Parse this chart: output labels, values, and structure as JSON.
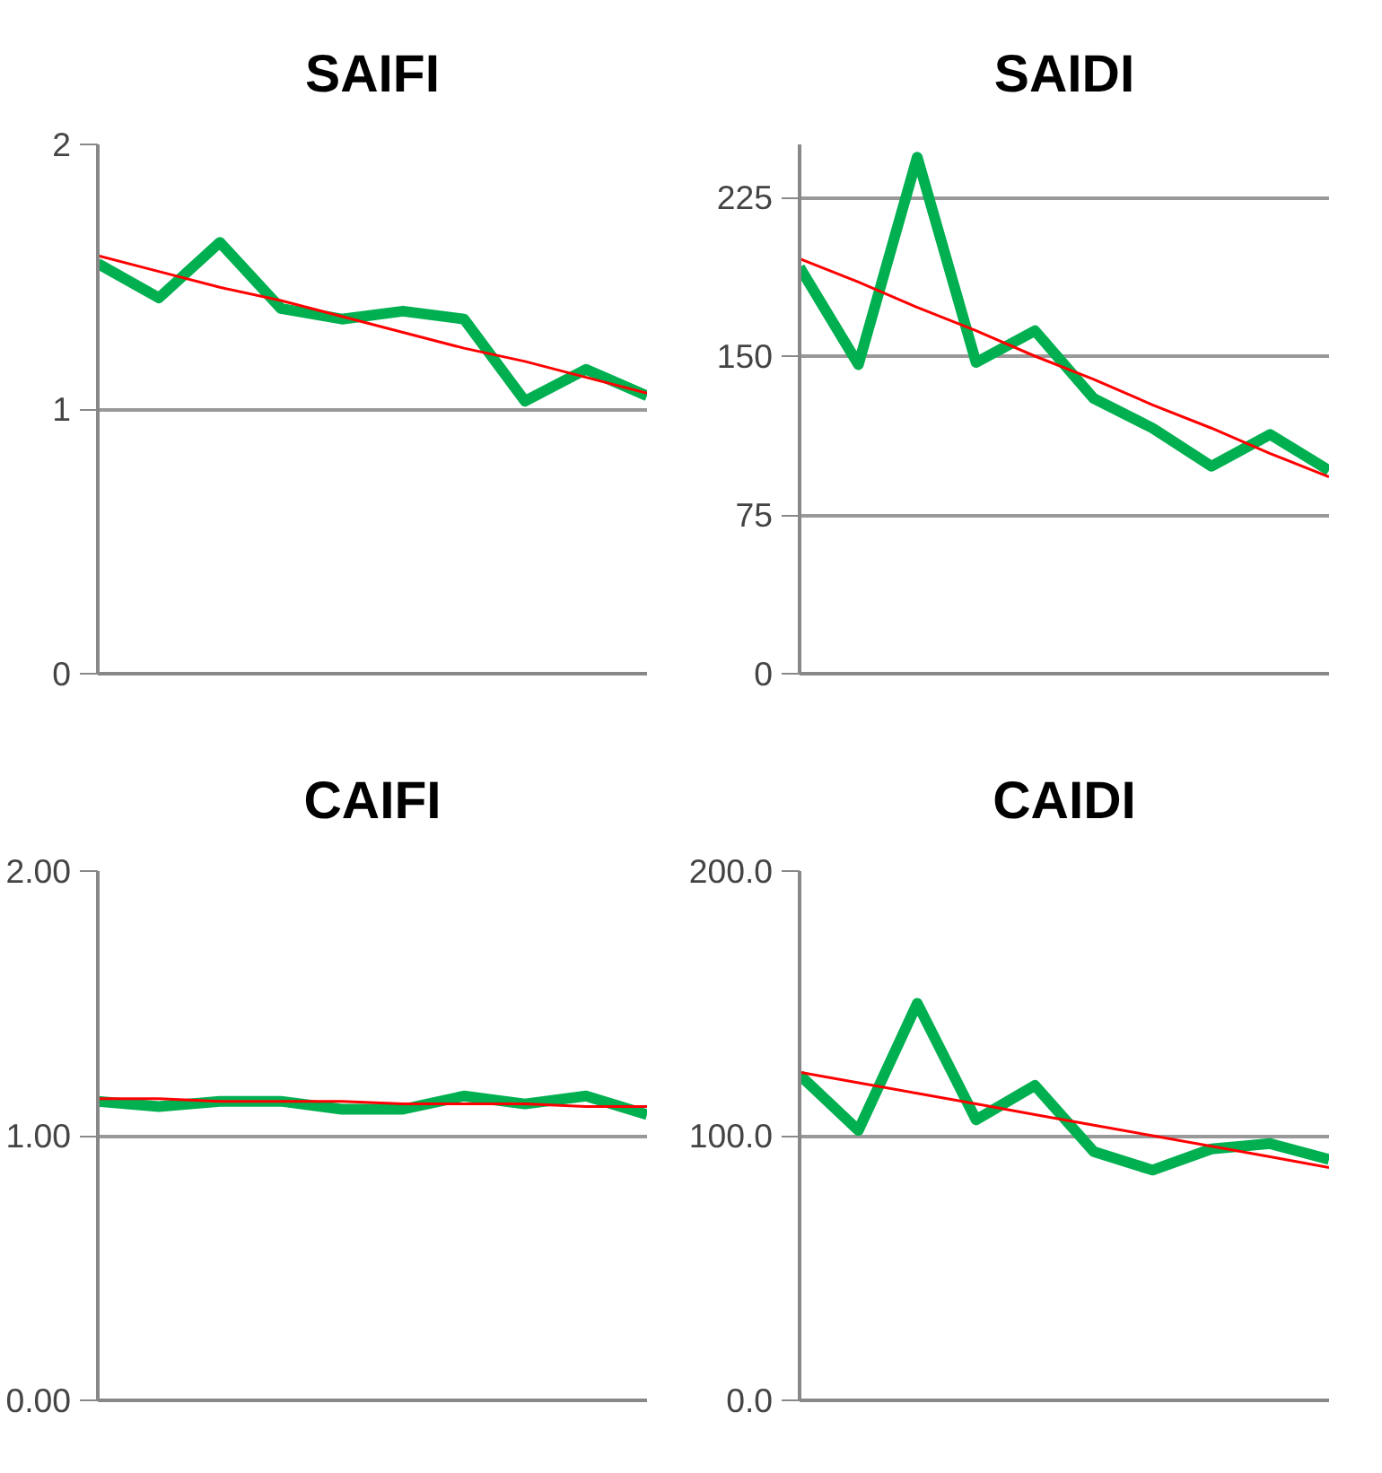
{
  "chart_data": [
    {
      "type": "line",
      "title": "SAIFI",
      "categories": [
        null,
        null,
        null,
        null,
        null,
        null,
        null,
        null,
        null,
        null
      ],
      "ylim": [
        0,
        2
      ],
      "yticks": [
        0,
        1,
        2
      ],
      "grid": "y",
      "tick_labels": "y",
      "series": [
        {
          "color": "#00b050",
          "values": [
            1.55,
            1.42,
            1.63,
            1.38,
            1.34,
            1.37,
            1.34,
            1.03,
            1.15,
            1.05
          ]
        },
        {
          "color": "#ff0000",
          "values": [
            1.58,
            1.52,
            1.46,
            1.41,
            1.35,
            1.29,
            1.23,
            1.18,
            1.12,
            1.06
          ]
        }
      ]
    },
    {
      "type": "line",
      "title": "SAIDI",
      "categories": [
        null,
        null,
        null,
        null,
        null,
        null,
        null,
        null,
        null,
        null
      ],
      "ylim": [
        0,
        250
      ],
      "yticks": [
        0,
        75,
        150,
        225
      ],
      "grid": "y",
      "tick_labels": "y",
      "series": [
        {
          "color": "#00b050",
          "values": [
            192,
            146,
            244,
            147,
            162,
            130,
            116,
            98,
            113,
            96
          ]
        },
        {
          "color": "#ff0000",
          "values": [
            196,
            185,
            173,
            162,
            150,
            139,
            127,
            116,
            104,
            93
          ]
        }
      ]
    },
    {
      "type": "line",
      "title": "CAIFI",
      "categories": [
        null,
        null,
        null,
        null,
        null,
        null,
        null,
        null,
        null,
        null
      ],
      "ylim": [
        0,
        2
      ],
      "yticks": [
        {
          "value": 0,
          "label": "0.00"
        },
        {
          "value": 1,
          "label": "1.00"
        },
        {
          "value": 2,
          "label": "2.00"
        }
      ],
      "grid": "y",
      "tick_labels": "y",
      "series": [
        {
          "color": "#00b050",
          "values": [
            1.13,
            1.11,
            1.13,
            1.13,
            1.1,
            1.1,
            1.15,
            1.12,
            1.15,
            1.08
          ]
        },
        {
          "color": "#ff0000",
          "values": [
            1.14,
            1.14,
            1.13,
            1.13,
            1.13,
            1.12,
            1.12,
            1.12,
            1.11,
            1.11
          ]
        }
      ]
    },
    {
      "type": "line",
      "title": "CAIDI",
      "categories": [
        null,
        null,
        null,
        null,
        null,
        null,
        null,
        null,
        null,
        null
      ],
      "ylim": [
        0,
        200
      ],
      "yticks": [
        {
          "value": 0,
          "label": "0.0"
        },
        {
          "value": 100,
          "label": "100.0"
        },
        {
          "value": 200,
          "label": "200.0"
        }
      ],
      "grid": "y",
      "tick_labels": "y",
      "series": [
        {
          "color": "#00b050",
          "values": [
            123,
            102,
            150,
            106,
            119,
            94,
            87,
            95,
            97,
            91
          ]
        },
        {
          "color": "#ff0000",
          "values": [
            124,
            120,
            116,
            112,
            108,
            104,
            100,
            96,
            92,
            88
          ]
        }
      ]
    }
  ]
}
